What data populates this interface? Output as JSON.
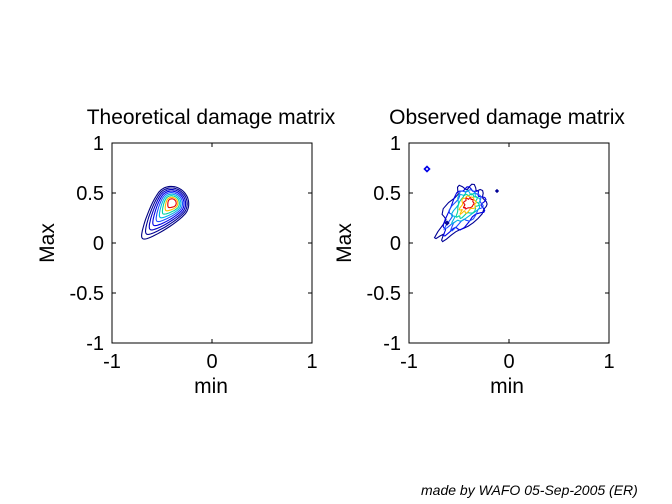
{
  "chart_data": [
    {
      "type": "contour",
      "title": "Theoretical damage matrix",
      "xlabel": "min",
      "ylabel": "Max",
      "xlim": [
        -1,
        1
      ],
      "ylim": [
        -1,
        1
      ],
      "xticks": [
        "-1",
        "0",
        "1"
      ],
      "yticks": [
        "1",
        "0.5",
        "0",
        "-0.5",
        "-1"
      ],
      "grid": false,
      "peak": [
        -0.4,
        0.4
      ],
      "levels": 9,
      "colors": [
        "#000080",
        "#000096",
        "#0000c0",
        "#0000e6",
        "#1e50ff",
        "#00b4e6",
        "#00d4a0",
        "#ffbe00",
        "#e60000"
      ]
    },
    {
      "type": "contour",
      "title": "Observed damage matrix",
      "xlabel": "min",
      "ylabel": "Max",
      "xlim": [
        -1,
        1
      ],
      "ylim": [
        -1,
        1
      ],
      "xticks": [
        "-1",
        "0",
        "1"
      ],
      "yticks": [
        "1",
        "0.5",
        "0",
        "-0.5",
        "-1"
      ],
      "grid": false,
      "peak": [
        -0.4,
        0.4
      ],
      "levels": 7,
      "colors": [
        "#000096",
        "#0000e6",
        "#1e50ff",
        "#00b4e6",
        "#00d4a0",
        "#ffbe00",
        "#e60000"
      ]
    }
  ],
  "footer": "made by WAFO 05-Sep-2005 (ER)"
}
